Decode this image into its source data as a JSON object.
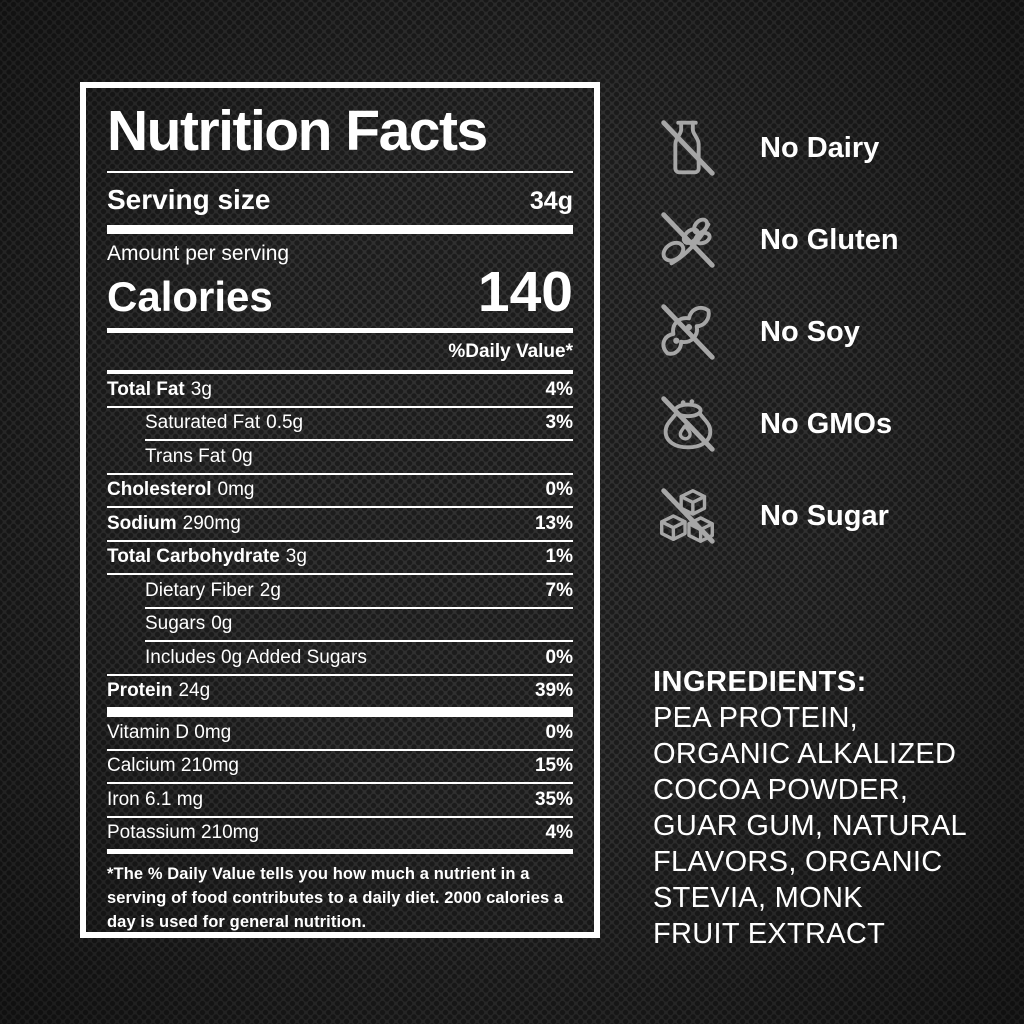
{
  "panel": {
    "title": "Nutrition Facts",
    "serving": {
      "label": "Serving size",
      "value": "34g"
    },
    "amount_per_serving": "Amount per serving",
    "calories": {
      "label": "Calories",
      "value": "140"
    },
    "daily_value_header": "%Daily Value*",
    "rows": [
      {
        "name": "Total Fat",
        "amount": "3g",
        "dv": "4%",
        "bold": true,
        "indent": 0
      },
      {
        "name": "Saturated Fat",
        "amount": "0.5g",
        "dv": "3%",
        "bold": false,
        "indent": 1
      },
      {
        "name": "Trans Fat",
        "amount": "0g",
        "dv": "",
        "bold": false,
        "indent": 1
      },
      {
        "name": "Cholesterol",
        "amount": "0mg",
        "dv": "0%",
        "bold": true,
        "indent": 0
      },
      {
        "name": "Sodium",
        "amount": "290mg",
        "dv": "13%",
        "bold": true,
        "indent": 0
      },
      {
        "name": "Total Carbohydrate",
        "amount": "3g",
        "dv": "1%",
        "bold": true,
        "indent": 0
      },
      {
        "name": "Dietary Fiber",
        "amount": "2g",
        "dv": "7%",
        "bold": false,
        "indent": 1
      },
      {
        "name": "Sugars",
        "amount": "0g",
        "dv": "",
        "bold": false,
        "indent": 1
      },
      {
        "name": "Includes 0g Added Sugars",
        "amount": "",
        "dv": "0%",
        "bold": false,
        "indent": 1
      },
      {
        "name": "Protein",
        "amount": "24g",
        "dv": "39%",
        "bold": true,
        "indent": 0
      }
    ],
    "micronutrients": [
      {
        "name": "Vitamin D 0mg",
        "dv": "0%"
      },
      {
        "name": "Calcium 210mg",
        "dv": "15%"
      },
      {
        "name": "Iron 6.1 mg",
        "dv": "35%"
      },
      {
        "name": "Potassium 210mg",
        "dv": "4%"
      }
    ],
    "footnote": "*The % Daily Value tells you how much a nutrient in a serving of food contributes to a daily diet. 2000 calories a day is used for general nutrition."
  },
  "badges": [
    {
      "icon": "no-dairy-icon",
      "label": "No Dairy"
    },
    {
      "icon": "no-gluten-icon",
      "label": "No Gluten"
    },
    {
      "icon": "no-soy-icon",
      "label": "No Soy"
    },
    {
      "icon": "no-gmos-icon",
      "label": "No GMOs"
    },
    {
      "icon": "no-sugar-icon",
      "label": "No Sugar"
    }
  ],
  "ingredients": {
    "heading": "INGREDIENTS:",
    "lines": [
      "PEA PROTEIN,",
      "ORGANIC ALKALIZED",
      "COCOA POWDER,",
      "GUAR GUM, NATURAL",
      "FLAVORS, ORGANIC",
      "STEVIA, MONK",
      "FRUIT EXTRACT"
    ]
  },
  "colors": {
    "icon_gray": "#a6a6a6",
    "text": "#ffffff",
    "background": "#303030"
  }
}
